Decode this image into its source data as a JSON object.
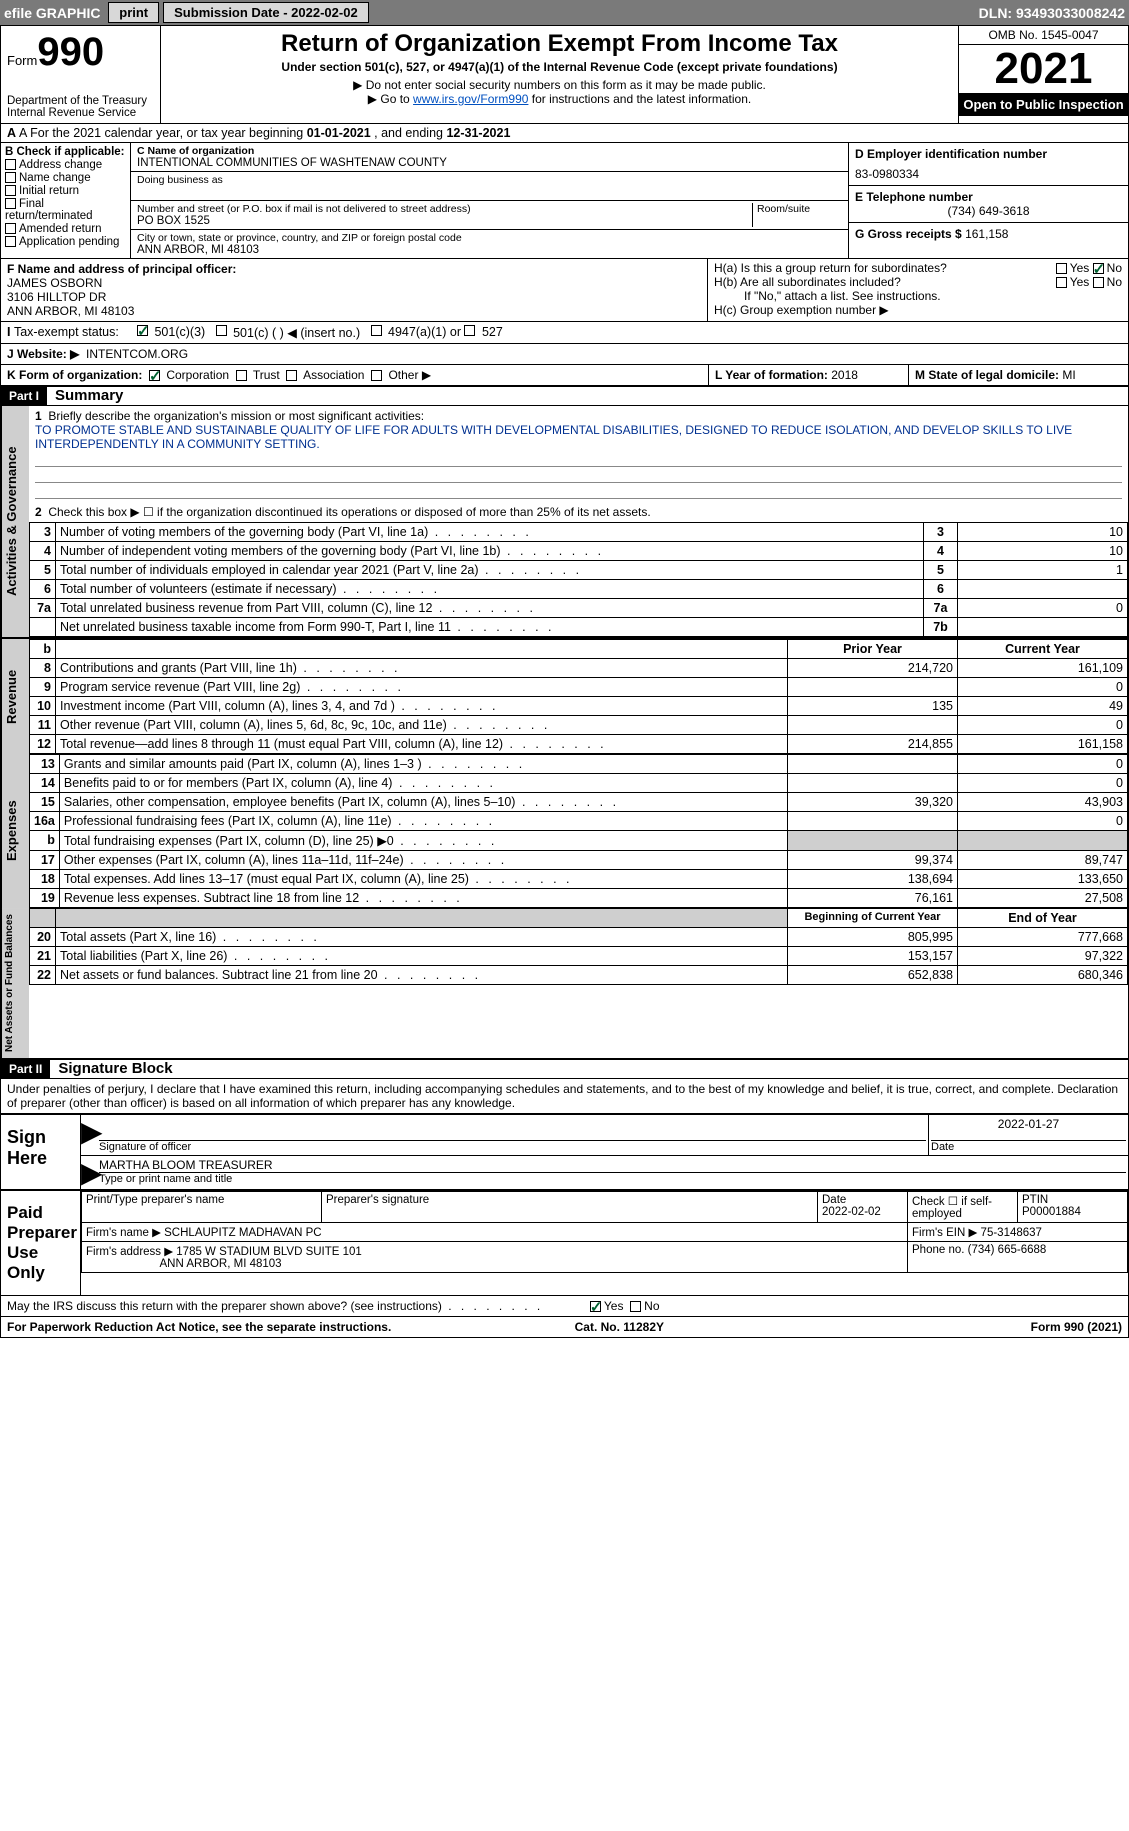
{
  "topbar": {
    "efile": "efile GRAPHIC",
    "print": "print",
    "submission_label": "Submission Date - ",
    "submission_date": "2022-02-02",
    "dln_label": "DLN: ",
    "dln": "93493033008242"
  },
  "header": {
    "form_word": "Form",
    "form_number": "990",
    "dept": "Department of the Treasury",
    "irs": "Internal Revenue Service",
    "title": "Return of Organization Exempt From Income Tax",
    "subtitle": "Under section 501(c), 527, or 4947(a)(1) of the Internal Revenue Code (except private foundations)",
    "note1": "▶ Do not enter social security numbers on this form as it may be made public.",
    "note2_pre": "▶ Go to ",
    "note2_link": "www.irs.gov/Form990",
    "note2_post": " for instructions and the latest information.",
    "omb": "OMB No. 1545-0047",
    "year": "2021",
    "inspect": "Open to Public Inspection"
  },
  "section_a": {
    "text_pre": "A For the 2021 calendar year, or tax year beginning ",
    "begin": "01-01-2021",
    "mid": " , and ending ",
    "end": "12-31-2021"
  },
  "block_b": {
    "title": "B Check if applicable:",
    "items": [
      "Address change",
      "Name change",
      "Initial return",
      "Final return/terminated",
      "Amended return",
      "Application pending"
    ]
  },
  "block_c": {
    "name_label": "C Name of organization",
    "name": "INTENTIONAL COMMUNITIES OF WASHTENAW COUNTY",
    "dba_label": "Doing business as",
    "street_label": "Number and street (or P.O. box if mail is not delivered to street address)",
    "street": "PO BOX 1525",
    "room_label": "Room/suite",
    "city_label": "City or town, state or province, country, and ZIP or foreign postal code",
    "city": "ANN ARBOR, MI  48103"
  },
  "block_d": {
    "ein_label": "D Employer identification number",
    "ein": "83-0980334",
    "phone_label": "E Telephone number",
    "phone": "(734) 649-3618",
    "gross_label": "G Gross receipts $ ",
    "gross": "161,158"
  },
  "block_f": {
    "label": "F Name and address of principal officer:",
    "name": "JAMES OSBORN",
    "street": "3106 HILLTOP DR",
    "city": "ANN ARBOR, MI  48103"
  },
  "block_h": {
    "a_label": "H(a)  Is this a group return for subordinates?",
    "b_label": "H(b)  Are all subordinates included?",
    "b_note": "If \"No,\" attach a list. See instructions.",
    "c_label": "H(c)  Group exemption number ▶",
    "yes": "Yes",
    "no": "No"
  },
  "tax_exempt": {
    "label": "Tax-exempt status:",
    "opt1": "501(c)(3)",
    "opt2": "501(c) (   ) ◀ (insert no.)",
    "opt3": "4947(a)(1) or",
    "opt4": "527"
  },
  "website": {
    "label": "J  Website: ▶",
    "value": "INTENTCOM.ORG"
  },
  "form_org": {
    "label": "K Form of organization:",
    "corp": "Corporation",
    "trust": "Trust",
    "assoc": "Association",
    "other": "Other ▶"
  },
  "formation": {
    "label": "L Year of formation: ",
    "value": "2018"
  },
  "domicile": {
    "label": "M State of legal domicile: ",
    "value": "MI"
  },
  "part1": {
    "header": "Part I",
    "title": "Summary",
    "q1_label": "Briefly describe the organization's mission or most significant activities:",
    "q1_text": "TO PROMOTE STABLE AND SUSTAINABLE QUALITY OF LIFE FOR ADULTS WITH DEVELOPMENTAL DISABILITIES, DESIGNED TO REDUCE ISOLATION, AND DEVELOP SKILLS TO LIVE INTERDEPENDENTLY IN A COMMUNITY SETTING.",
    "q2": "Check this box ▶ ☐ if the organization discontinued its operations or disposed of more than 25% of its net assets.",
    "rows_gov": [
      {
        "n": "3",
        "t": "Number of voting members of the governing body (Part VI, line 1a)",
        "box": "3",
        "v": "10"
      },
      {
        "n": "4",
        "t": "Number of independent voting members of the governing body (Part VI, line 1b)",
        "box": "4",
        "v": "10"
      },
      {
        "n": "5",
        "t": "Total number of individuals employed in calendar year 2021 (Part V, line 2a)",
        "box": "5",
        "v": "1"
      },
      {
        "n": "6",
        "t": "Total number of volunteers (estimate if necessary)",
        "box": "6",
        "v": ""
      },
      {
        "n": "7a",
        "t": "Total unrelated business revenue from Part VIII, column (C), line 12",
        "box": "7a",
        "v": "0"
      },
      {
        "n": "",
        "t": "Net unrelated business taxable income from Form 990-T, Part I, line 11",
        "box": "7b",
        "v": ""
      }
    ],
    "col_py": "Prior Year",
    "col_cy": "Current Year",
    "rows_rev": [
      {
        "n": "8",
        "t": "Contributions and grants (Part VIII, line 1h)",
        "py": "214,720",
        "cy": "161,109"
      },
      {
        "n": "9",
        "t": "Program service revenue (Part VIII, line 2g)",
        "py": "",
        "cy": "0"
      },
      {
        "n": "10",
        "t": "Investment income (Part VIII, column (A), lines 3, 4, and 7d )",
        "py": "135",
        "cy": "49"
      },
      {
        "n": "11",
        "t": "Other revenue (Part VIII, column (A), lines 5, 6d, 8c, 9c, 10c, and 11e)",
        "py": "",
        "cy": "0"
      },
      {
        "n": "12",
        "t": "Total revenue—add lines 8 through 11 (must equal Part VIII, column (A), line 12)",
        "py": "214,855",
        "cy": "161,158"
      }
    ],
    "rows_exp": [
      {
        "n": "13",
        "t": "Grants and similar amounts paid (Part IX, column (A), lines 1–3 )",
        "py": "",
        "cy": "0"
      },
      {
        "n": "14",
        "t": "Benefits paid to or for members (Part IX, column (A), line 4)",
        "py": "",
        "cy": "0"
      },
      {
        "n": "15",
        "t": "Salaries, other compensation, employee benefits (Part IX, column (A), lines 5–10)",
        "py": "39,320",
        "cy": "43,903"
      },
      {
        "n": "16a",
        "t": "Professional fundraising fees (Part IX, column (A), line 11e)",
        "py": "",
        "cy": "0"
      },
      {
        "n": "b",
        "t": "Total fundraising expenses (Part IX, column (D), line 25) ▶0",
        "py": "shade",
        "cy": "shade"
      },
      {
        "n": "17",
        "t": "Other expenses (Part IX, column (A), lines 11a–11d, 11f–24e)",
        "py": "99,374",
        "cy": "89,747"
      },
      {
        "n": "18",
        "t": "Total expenses. Add lines 13–17 (must equal Part IX, column (A), line 25)",
        "py": "138,694",
        "cy": "133,650"
      },
      {
        "n": "19",
        "t": "Revenue less expenses. Subtract line 18 from line 12",
        "py": "76,161",
        "cy": "27,508"
      }
    ],
    "col_boy": "Beginning of Current Year",
    "col_eoy": "End of Year",
    "rows_net": [
      {
        "n": "20",
        "t": "Total assets (Part X, line 16)",
        "py": "805,995",
        "cy": "777,668"
      },
      {
        "n": "21",
        "t": "Total liabilities (Part X, line 26)",
        "py": "153,157",
        "cy": "97,322"
      },
      {
        "n": "22",
        "t": "Net assets or fund balances. Subtract line 21 from line 20",
        "py": "652,838",
        "cy": "680,346"
      }
    ],
    "vtab_gov": "Activities & Governance",
    "vtab_rev": "Revenue",
    "vtab_exp": "Expenses",
    "vtab_net": "Net Assets or Fund Balances"
  },
  "part2": {
    "header": "Part II",
    "title": "Signature Block",
    "penalties": "Under penalties of perjury, I declare that I have examined this return, including accompanying schedules and statements, and to the best of my knowledge and belief, it is true, correct, and complete. Declaration of preparer (other than officer) is based on all information of which preparer has any knowledge.",
    "sign_here": "Sign Here",
    "sig_officer": "Signature of officer",
    "sig_date": "Date",
    "sig_date_val": "2022-01-27",
    "officer_name": "MARTHA BLOOM TREASURER",
    "officer_label": "Type or print name and title",
    "paid": "Paid Preparer Use Only",
    "prep_name_label": "Print/Type preparer's name",
    "prep_sig_label": "Preparer's signature",
    "date_label": "Date",
    "date_val": "2022-02-02",
    "check_self": "Check ☐ if self-employed",
    "ptin_label": "PTIN",
    "ptin": "P00001884",
    "firm_name_label": "Firm's name    ▶ ",
    "firm_name": "SCHLAUPITZ MADHAVAN PC",
    "firm_ein_label": "Firm's EIN ▶ ",
    "firm_ein": "75-3148637",
    "firm_addr_label": "Firm's address ▶ ",
    "firm_addr1": "1785 W STADIUM BLVD SUITE 101",
    "firm_addr2": "ANN ARBOR, MI  48103",
    "firm_phone_label": "Phone no. ",
    "firm_phone": "(734) 665-6688",
    "discuss": "May the IRS discuss this return with the preparer shown above? (see instructions)"
  },
  "footer": {
    "left": "For Paperwork Reduction Act Notice, see the separate instructions.",
    "mid": "Cat. No. 11282Y",
    "right": "Form 990 (2021)"
  }
}
